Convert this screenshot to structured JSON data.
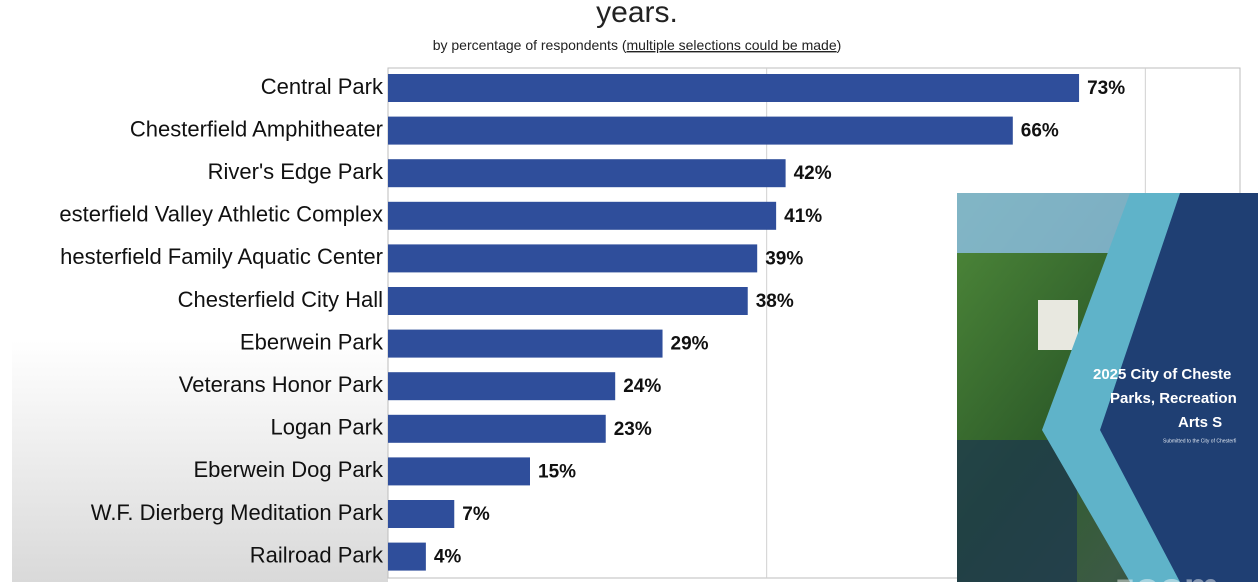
{
  "chart_data": {
    "type": "bar",
    "orientation": "horizontal",
    "title": "years.",
    "subtitle": [
      "by percentage of respondents (",
      "multiple selections could be made",
      ")"
    ],
    "categories": [
      "Central Park",
      "Chesterfield Amphitheater",
      "River's Edge Park",
      "esterfield Valley Athletic Complex",
      "hesterfield Family Aquatic Center",
      "Chesterfield City Hall",
      "Eberwein Park",
      "Veterans Honor Park",
      "Logan Park",
      "Eberwein Dog Park",
      "W.F. Dierberg Meditation Park",
      "Railroad Park"
    ],
    "values": [
      73,
      66,
      42,
      41,
      39,
      38,
      29,
      24,
      23,
      15,
      7,
      4
    ],
    "value_labels": [
      "73%",
      "66%",
      "42%",
      "41%",
      "39%",
      "38%",
      "29%",
      "24%",
      "23%",
      "15%",
      "7%",
      "4%"
    ],
    "color": "#2f4e9b",
    "xlim": [
      0,
      90
    ],
    "gridlines": [
      40,
      80
    ]
  },
  "overlay": {
    "lines": [
      "2025 City of Cheste",
      "Parks, Recreation",
      "Arts S"
    ],
    "note": "Submitted to the City of Chesterfi",
    "watermark": "zoom"
  }
}
